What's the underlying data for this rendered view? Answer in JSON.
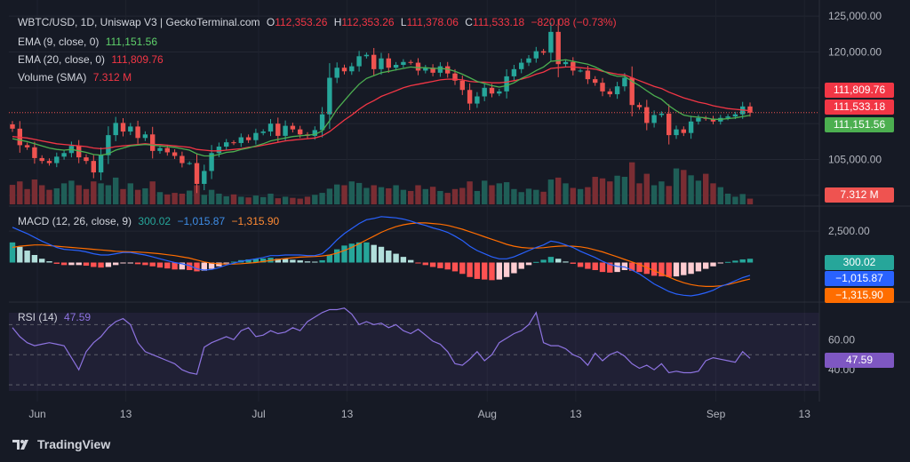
{
  "header": {
    "symbol_line": "WBTC/USD, 1D, Uniswap V3 | GeckoTerminal.com",
    "o_label": "O",
    "o": "112,353.26",
    "h_label": "H",
    "h": "112,353.26",
    "l_label": "L",
    "l": "111,378.06",
    "c_label": "C",
    "c": "111,533.18",
    "change": "−820.08 (−0.73%)"
  },
  "indicators": {
    "ema9_label": "EMA (9, close, 0)",
    "ema9_value": "111,151.56",
    "ema20_label": "EMA (20, close, 0)",
    "ema20_value": "111,809.76",
    "volume_label": "Volume (SMA)",
    "volume_value": "7.312 M",
    "macd_label": "MACD (12, 26, close, 9)",
    "macd_hist": "300.02",
    "macd_line": "−1,015.87",
    "macd_signal": "−1,315.90",
    "rsi_label": "RSI (14)",
    "rsi_value": "47.59"
  },
  "badges": {
    "ema20": "111,809.76",
    "close": "111,533.18",
    "ema9": "111,151.56",
    "volume": "7.312 M",
    "macd_hist": "300.02",
    "macd_line": "−1,015.87",
    "macd_signal": "−1,315.90",
    "rsi": "47.59"
  },
  "colors": {
    "up": "#26a69a",
    "down": "#ef5350",
    "ema9": "#4caf50",
    "ema20": "#f23645",
    "macd": "#2962ff",
    "signal": "#ff6d00",
    "rsi": "#7e57c2"
  },
  "branding": {
    "name": "TradingView"
  },
  "chart_data": {
    "type": "candlestick",
    "x_ticks": [
      "Jun",
      "13",
      "Jul",
      "13",
      "Aug",
      "13",
      "Sep",
      "13"
    ],
    "x_tick_days": [
      0,
      12,
      30,
      42,
      61,
      73,
      92,
      104
    ],
    "price_axis": {
      "ticks": [
        "125,000.00",
        "120,000.00",
        "115,000.00",
        "110,000.00",
        "105,000.00",
        "100,000.00"
      ],
      "tick_values": [
        125000,
        120000,
        115000,
        110000,
        105000,
        100000
      ],
      "range": [
        98500,
        126500
      ]
    },
    "macd_axis": {
      "ticks": [
        "2,500.00"
      ],
      "tick_values": [
        2500
      ],
      "range": [
        -3000,
        4200
      ]
    },
    "rsi_axis": {
      "ticks": [
        "60.00",
        "40.00"
      ],
      "tick_values": [
        60,
        40
      ],
      "levels": [
        70,
        50,
        30
      ],
      "range": [
        20,
        85
      ]
    },
    "close": [
      109300,
      107000,
      106700,
      105200,
      104800,
      104500,
      105400,
      105900,
      106900,
      105300,
      104800,
      103200,
      105600,
      108400,
      110100,
      108900,
      109600,
      108000,
      108500,
      106200,
      106600,
      106000,
      105500,
      104500,
      104500,
      101600,
      103400,
      105900,
      106800,
      107400,
      107300,
      108100,
      107700,
      108700,
      108900,
      110000,
      108300,
      109700,
      109200,
      108500,
      108300,
      109100,
      111300,
      116400,
      117800,
      117300,
      118000,
      119400,
      119600,
      117600,
      119100,
      117800,
      118200,
      118600,
      118500,
      117400,
      117800,
      117100,
      118000,
      117000,
      116000,
      114700,
      112800,
      113800,
      115000,
      114200,
      114500,
      116600,
      117600,
      118500,
      119100,
      120100,
      119900,
      122800,
      118300,
      118600,
      117400,
      117400,
      116200,
      115700,
      114500,
      114100,
      115200,
      116400,
      112600,
      112300,
      110100,
      111200,
      111400,
      108400,
      109200,
      108700,
      110300,
      110800,
      110700,
      110300,
      110800,
      111000,
      111300,
      112400,
      111533
    ],
    "volume_m": [
      5.1,
      6.0,
      4.0,
      6.5,
      5.0,
      3.8,
      4.2,
      5.5,
      6.2,
      5.0,
      4.0,
      6.0,
      5.5,
      5.0,
      7.0,
      4.0,
      5.5,
      3.8,
      4.2,
      6.0,
      3.2,
      2.6,
      3.0,
      2.8,
      3.6,
      5.0,
      2.5,
      3.8,
      2.8,
      2.1,
      2.6,
      2.0,
      1.8,
      2.3,
      1.9,
      2.8,
      1.6,
      2.0,
      1.7,
      1.5,
      2.0,
      2.5,
      3.0,
      4.1,
      5.2,
      5.0,
      6.0,
      5.6,
      4.3,
      5.0,
      4.5,
      4.2,
      5.0,
      3.8,
      3.5,
      5.0,
      4.0,
      4.6,
      3.5,
      3.0,
      4.0,
      4.3,
      6.0,
      3.5,
      6.2,
      5.0,
      5.5,
      5.8,
      4.0,
      3.2,
      4.1,
      3.8,
      3.3,
      6.5,
      7.0,
      5.5,
      4.3,
      4.0,
      4.5,
      7.2,
      6.8,
      6.0,
      7.5,
      7.2,
      11.0,
      5.5,
      8.0,
      5.0,
      6.0,
      4.8,
      9.4,
      9.0,
      7.6,
      6.2,
      8.0,
      5.5,
      4.5,
      2.8,
      2.0,
      2.7,
      1.5
    ],
    "ema9": [
      107900,
      107700,
      107500,
      107200,
      106900,
      106600,
      106400,
      106300,
      106400,
      106200,
      106000,
      105700,
      105600,
      105800,
      106300,
      106600,
      106900,
      107000,
      107100,
      107000,
      106900,
      106800,
      106700,
      106500,
      106300,
      105800,
      105500,
      105500,
      105700,
      106000,
      106100,
      106400,
      106600,
      106900,
      107200,
      107600,
      107800,
      108000,
      108200,
      108300,
      108400,
      108500,
      109000,
      110400,
      112000,
      113200,
      114400,
      115500,
      116300,
      116700,
      117100,
      117300,
      117500,
      117700,
      117900,
      117800,
      117800,
      117700,
      117700,
      117600,
      117300,
      116900,
      116400,
      115900,
      115600,
      115300,
      115100,
      115300,
      115700,
      116300,
      116800,
      117400,
      117900,
      118700,
      118800,
      118900,
      118700,
      118500,
      118300,
      117900,
      117400,
      116900,
      116600,
      116600,
      115900,
      115300,
      114600,
      113900,
      113400,
      112500,
      111800,
      111200,
      111000,
      110900,
      110800,
      110600,
      110600,
      110700,
      110800,
      111000,
      111152
    ],
    "ema20": [
      108200,
      108100,
      108000,
      107800,
      107600,
      107400,
      107200,
      107100,
      107000,
      106900,
      106800,
      106600,
      106500,
      106600,
      106800,
      106900,
      107000,
      107100,
      107200,
      107100,
      107100,
      107000,
      106900,
      106800,
      106700,
      106400,
      106300,
      106200,
      106200,
      106300,
      106400,
      106500,
      106700,
      106800,
      107000,
      107200,
      107400,
      107600,
      107700,
      107800,
      107900,
      108000,
      108300,
      108900,
      109700,
      110500,
      111200,
      112000,
      112700,
      113200,
      113800,
      114200,
      114600,
      115000,
      115300,
      115500,
      115700,
      115900,
      116100,
      116200,
      116200,
      116100,
      115900,
      115800,
      115800,
      115700,
      115700,
      115800,
      116000,
      116200,
      116500,
      116900,
      117200,
      117700,
      117800,
      117900,
      117900,
      117800,
      117700,
      117600,
      117300,
      117100,
      116900,
      116800,
      116400,
      116000,
      115600,
      115200,
      114900,
      114400,
      114000,
      113600,
      113300,
      113000,
      112800,
      112500,
      112300,
      112100,
      112000,
      111900,
      111810
    ],
    "macd_line": [
      2800,
      2550,
      2300,
      2000,
      1700,
      1450,
      1200,
      1050,
      1000,
      950,
      850,
      700,
      600,
      600,
      700,
      800,
      800,
      700,
      600,
      450,
      300,
      150,
      0,
      -100,
      -250,
      -500,
      -600,
      -550,
      -400,
      -200,
      -50,
      100,
      200,
      300,
      400,
      550,
      550,
      600,
      600,
      600,
      550,
      550,
      700,
      1200,
      1800,
      2300,
      2700,
      3100,
      3400,
      3500,
      3650,
      3600,
      3550,
      3450,
      3300,
      3100,
      2950,
      2750,
      2600,
      2400,
      2100,
      1750,
      1300,
      950,
      700,
      450,
      300,
      300,
      450,
      700,
      950,
      1200,
      1400,
      1700,
      1600,
      1400,
      1200,
      900,
      650,
      400,
      100,
      -150,
      -300,
      -350,
      -600,
      -900,
      -1300,
      -1700,
      -2000,
      -2300,
      -2500,
      -2600,
      -2650,
      -2550,
      -2400,
      -2200,
      -1900,
      -1700,
      -1450,
      -1200,
      -1016
    ],
    "macd_signal": [
      1200,
      1300,
      1350,
      1400,
      1400,
      1350,
      1300,
      1250,
      1200,
      1150,
      1100,
      1050,
      1000,
      950,
      900,
      870,
      850,
      830,
      800,
      750,
      700,
      620,
      550,
      450,
      350,
      200,
      50,
      -50,
      -100,
      -130,
      -120,
      -90,
      -50,
      0,
      80,
      170,
      250,
      320,
      380,
      430,
      460,
      480,
      520,
      600,
      750,
      950,
      1200,
      1500,
      1800,
      2100,
      2400,
      2650,
      2850,
      3000,
      3100,
      3150,
      3150,
      3100,
      3050,
      2950,
      2800,
      2650,
      2450,
      2250,
      2050,
      1850,
      1650,
      1450,
      1300,
      1200,
      1150,
      1150,
      1180,
      1250,
      1300,
      1320,
      1300,
      1250,
      1150,
      1000,
      850,
      650,
      450,
      250,
      50,
      -150,
      -400,
      -650,
      -900,
      -1150,
      -1400,
      -1600,
      -1750,
      -1850,
      -1900,
      -1900,
      -1850,
      -1750,
      -1600,
      -1450,
      -1316
    ],
    "rsi": [
      68,
      62,
      58,
      56,
      57,
      58,
      57,
      56,
      48,
      40,
      52,
      58,
      62,
      68,
      72,
      74,
      70,
      58,
      52,
      50,
      48,
      46,
      44,
      40,
      38,
      37,
      55,
      58,
      60,
      62,
      60,
      66,
      68,
      62,
      63,
      66,
      64,
      65,
      68,
      66,
      72,
      75,
      78,
      80,
      80,
      81,
      77,
      70,
      72,
      70,
      71,
      68,
      70,
      66,
      64,
      67,
      63,
      59,
      57,
      52,
      44,
      43,
      47,
      52,
      46,
      50,
      58,
      61,
      64,
      66,
      70,
      78,
      58,
      56,
      56,
      54,
      50,
      48,
      43,
      51,
      46,
      50,
      52,
      49,
      44,
      41,
      43,
      40,
      44,
      38,
      39,
      38,
      38,
      39,
      46,
      48,
      47,
      46,
      45,
      52,
      47.59
    ]
  }
}
